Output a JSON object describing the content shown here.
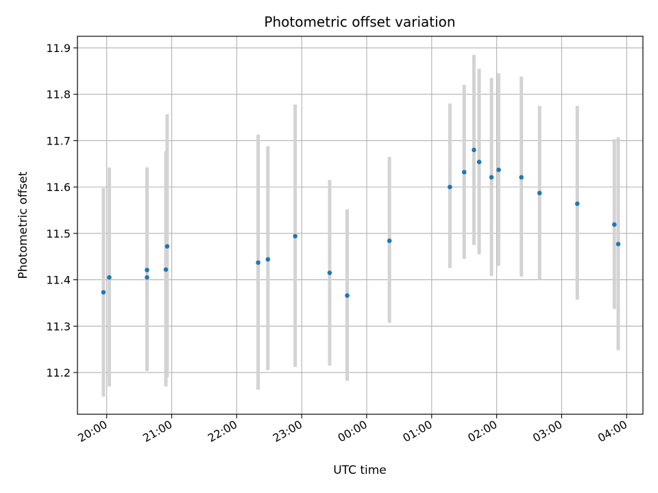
{
  "chart_data": {
    "type": "scatter",
    "title": "Photometric offset variation",
    "xlabel": "UTC time",
    "ylabel": "Photometric offset",
    "x_tick_labels": [
      "20:00",
      "21:00",
      "22:00",
      "23:00",
      "00:00",
      "01:00",
      "02:00",
      "03:00",
      "04:00"
    ],
    "y_ticks": [
      11.2,
      11.3,
      11.4,
      11.5,
      11.6,
      11.7,
      11.8,
      11.9
    ],
    "y_tick_labels": [
      "11.2",
      "11.3",
      "11.4",
      "11.5",
      "11.6",
      "11.7",
      "11.8",
      "11.9"
    ],
    "ylim": [
      11.11,
      11.925
    ],
    "xlim_hours": [
      19.55,
      28.25
    ],
    "grid": true,
    "series": [
      {
        "marker_color": "#1f77b4",
        "errorbar_color": "#d3d3d3",
        "points": [
          {
            "x": 19.95,
            "y": 11.373,
            "ylow": 11.148,
            "yhigh": 11.598
          },
          {
            "x": 20.04,
            "y": 11.405,
            "ylow": 11.17,
            "yhigh": 11.642
          },
          {
            "x": 20.62,
            "y": 11.405,
            "ylow": 11.203,
            "yhigh": 11.642
          },
          {
            "x": 20.62,
            "y": 11.421,
            "ylow": 11.203,
            "yhigh": 11.642
          },
          {
            "x": 20.91,
            "y": 11.422,
            "ylow": 11.17,
            "yhigh": 11.677
          },
          {
            "x": 20.93,
            "y": 11.472,
            "ylow": 11.19,
            "yhigh": 11.757
          },
          {
            "x": 22.33,
            "y": 11.437,
            "ylow": 11.163,
            "yhigh": 11.713
          },
          {
            "x": 22.48,
            "y": 11.444,
            "ylow": 11.205,
            "yhigh": 11.688
          },
          {
            "x": 22.9,
            "y": 11.494,
            "ylow": 11.212,
            "yhigh": 11.778
          },
          {
            "x": 23.43,
            "y": 11.415,
            "ylow": 11.215,
            "yhigh": 11.615
          },
          {
            "x": 23.7,
            "y": 11.366,
            "ylow": 11.182,
            "yhigh": 11.552
          },
          {
            "x": 24.35,
            "y": 11.484,
            "ylow": 11.307,
            "yhigh": 11.665
          },
          {
            "x": 25.28,
            "y": 11.6,
            "ylow": 11.425,
            "yhigh": 11.78
          },
          {
            "x": 25.5,
            "y": 11.632,
            "ylow": 11.445,
            "yhigh": 11.82
          },
          {
            "x": 25.65,
            "y": 11.68,
            "ylow": 11.475,
            "yhigh": 11.885
          },
          {
            "x": 25.73,
            "y": 11.654,
            "ylow": 11.455,
            "yhigh": 11.855
          },
          {
            "x": 25.92,
            "y": 11.621,
            "ylow": 11.408,
            "yhigh": 11.835
          },
          {
            "x": 26.03,
            "y": 11.637,
            "ylow": 11.43,
            "yhigh": 11.845
          },
          {
            "x": 26.38,
            "y": 11.621,
            "ylow": 11.407,
            "yhigh": 11.838
          },
          {
            "x": 26.66,
            "y": 11.587,
            "ylow": 11.4,
            "yhigh": 11.775
          },
          {
            "x": 27.24,
            "y": 11.564,
            "ylow": 11.357,
            "yhigh": 11.775
          },
          {
            "x": 27.81,
            "y": 11.519,
            "ylow": 11.337,
            "yhigh": 11.703
          },
          {
            "x": 27.87,
            "y": 11.477,
            "ylow": 11.248,
            "yhigh": 11.707
          }
        ]
      }
    ]
  }
}
